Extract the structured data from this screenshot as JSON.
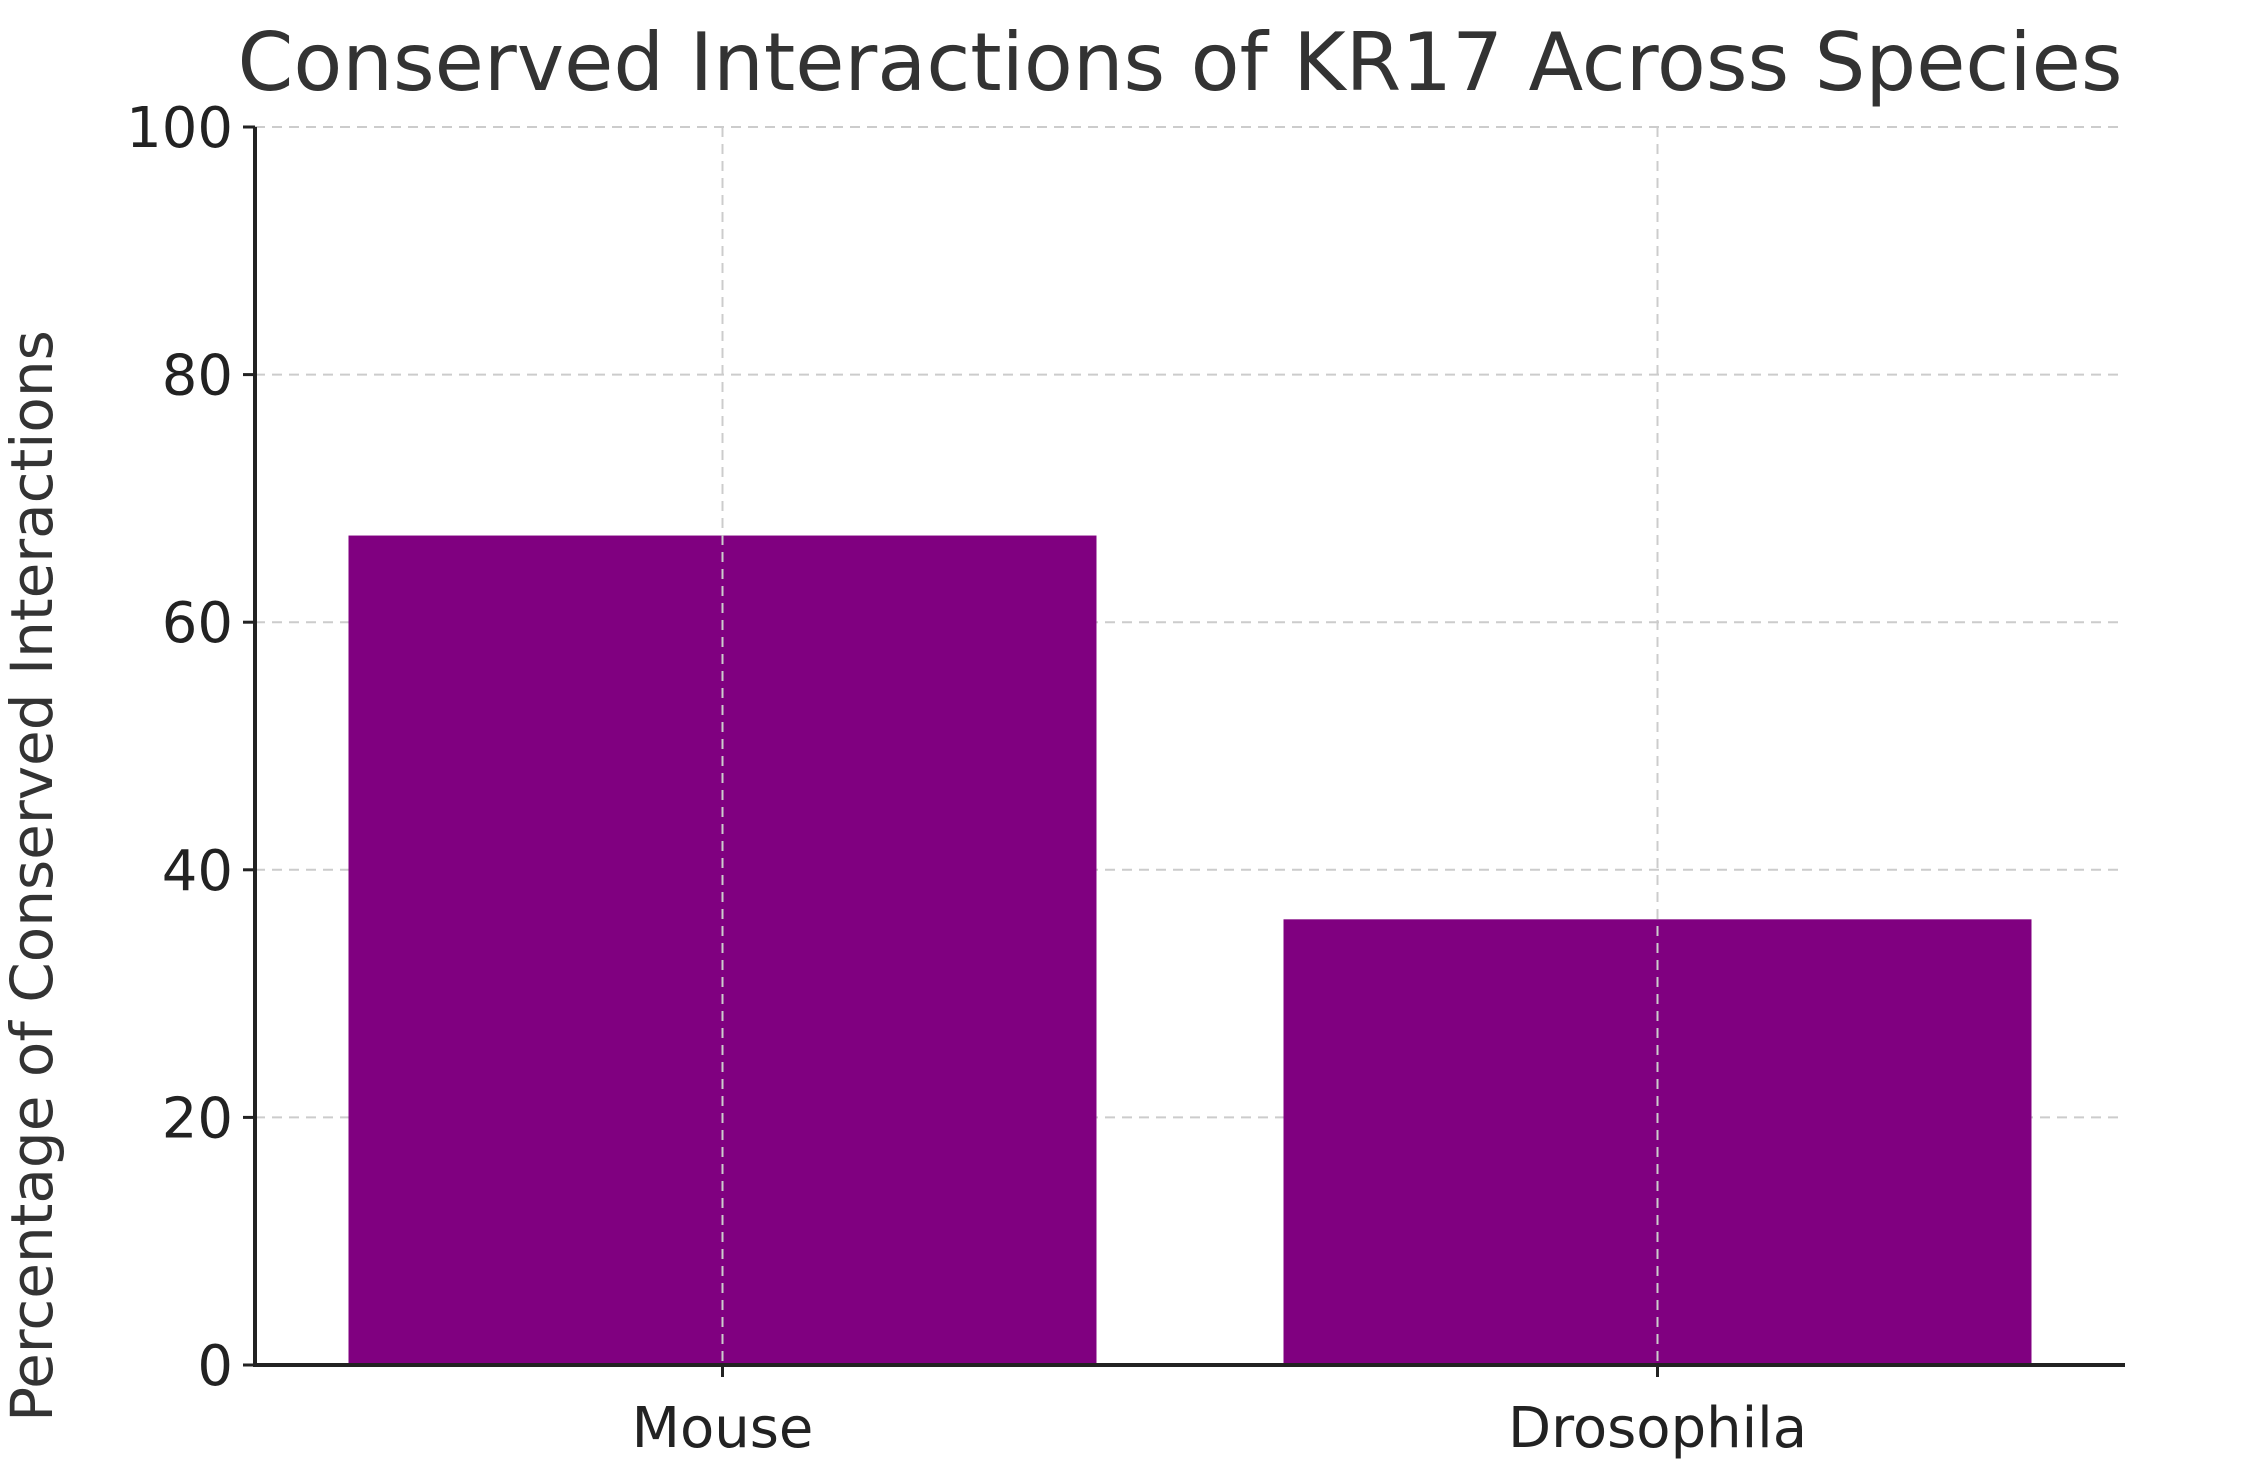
{
  "chart_data": {
    "type": "bar",
    "title": "Conserved Interactions of KR17 Across Species",
    "xlabel": "",
    "ylabel": "Percentage of Conserved Interactions",
    "categories": [
      "Mouse",
      "Drosophila"
    ],
    "values": [
      67,
      36
    ],
    "ylim": [
      0,
      100
    ],
    "yticks": [
      0,
      20,
      40,
      60,
      80,
      100
    ],
    "ytick_labels": [
      "0",
      "20",
      "40",
      "60",
      "80",
      "100"
    ],
    "grid": true,
    "bar_color": "#800080"
  }
}
